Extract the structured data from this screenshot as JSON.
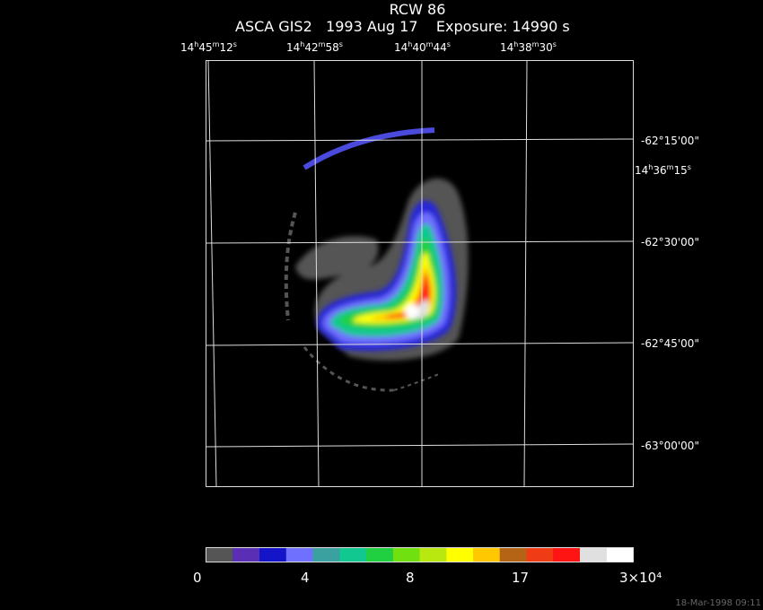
{
  "title": "RCW 86",
  "header": {
    "instrument": "ASCA GIS2",
    "date": "1993 Aug 17",
    "exposure": "Exposure: 14990 s"
  },
  "ra_labels": [
    {
      "h": "14",
      "m": "45",
      "s": "12"
    },
    {
      "h": "14",
      "m": "42",
      "s": "58"
    },
    {
      "h": "14",
      "m": "40",
      "s": "44"
    },
    {
      "h": "14",
      "m": "38",
      "s": "30"
    },
    {
      "h": "14",
      "m": "36",
      "s": "15"
    }
  ],
  "dec_labels": [
    "-62°15'00\"",
    "-62°30'00\"",
    "-62°45'00\"",
    "-63°00'00\""
  ],
  "colorbar": {
    "ticks": [
      "0",
      "4",
      "8",
      "17",
      "3×10⁴"
    ],
    "colors": [
      "#555555",
      "#5a2fb5",
      "#1414c8",
      "#7070ff",
      "#3aa0a0",
      "#10c890",
      "#20d040",
      "#70e010",
      "#b8e810",
      "#ffff00",
      "#ffc800",
      "#b46414",
      "#f03c14",
      "#ff1414",
      "#e0e0e0",
      "#ffffff"
    ]
  },
  "timestamp": "18-Mar-1998 09:11"
}
